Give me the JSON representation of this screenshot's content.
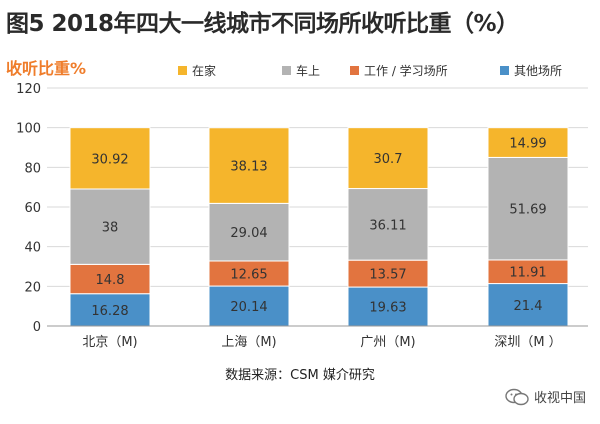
{
  "title": "图5 2018年四大一线城市不同场所收听比重（%）",
  "source": "数据来源：CSM 媒介研究",
  "watermark": "收视中国",
  "chart_data": {
    "type": "bar",
    "stacked": true,
    "ylabel": "收听比重%",
    "ylim": [
      0,
      120
    ],
    "yticks": [
      0,
      20,
      40,
      60,
      80,
      100,
      120
    ],
    "categories": [
      "北京（M)",
      "上海（M)",
      "广州（M)",
      "深圳（M ）"
    ],
    "series": [
      {
        "name": "其他场所",
        "color": "#4a90c8",
        "values": [
          16.28,
          20.14,
          19.63,
          21.4
        ]
      },
      {
        "name": "工作 / 学习场所",
        "color": "#e2743f",
        "values": [
          14.8,
          12.65,
          13.57,
          11.91
        ]
      },
      {
        "name": "车上",
        "color": "#b3b3b3",
        "values": [
          38,
          29.04,
          36.11,
          51.69
        ]
      },
      {
        "name": "在家",
        "color": "#f5b52c",
        "values": [
          30.92,
          38.13,
          30.7,
          14.99
        ]
      }
    ],
    "legend_order": [
      "在家",
      "车上",
      "工作 / 学习场所",
      "其他场所"
    ],
    "legend_position": "top",
    "grid": true
  }
}
